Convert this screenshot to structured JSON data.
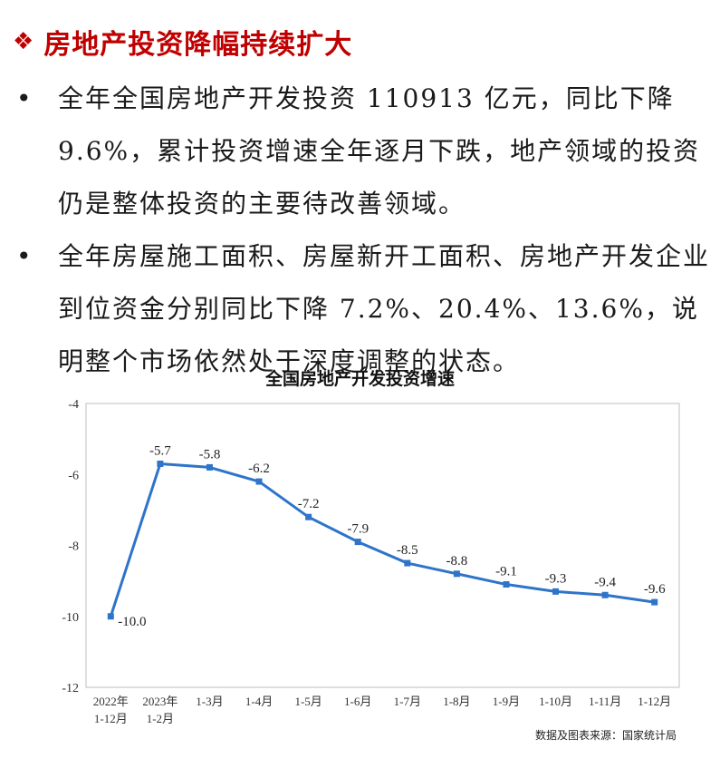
{
  "header": {
    "marker": "❖",
    "title": "房地产投资降幅持续扩大"
  },
  "bullets": [
    {
      "marker": "•",
      "text": "全年全国房地产开发投资 110913 亿元，同比下降 9.6%，累计投资增速全年逐月下跌，地产领域的投资仍是整体投资的主要待改善领域。"
    },
    {
      "marker": "•",
      "text": "全年房屋施工面积、房屋新开工面积、房地产开发企业到位资金分别同比下降 7.2%、20.4%、13.6%，说明整个市场依然处于深度调整的状态。"
    }
  ],
  "chart_data": {
    "type": "line",
    "title": "全国房地产开发投资增速",
    "categories": [
      [
        "2022年",
        "1-12月"
      ],
      [
        "2023年",
        "1-2月"
      ],
      [
        "1-3月"
      ],
      [
        "1-4月"
      ],
      [
        "1-5月"
      ],
      [
        "1-6月"
      ],
      [
        "1-7月"
      ],
      [
        "1-8月"
      ],
      [
        "1-9月"
      ],
      [
        "1-10月"
      ],
      [
        "1-11月"
      ],
      [
        "1-12月"
      ]
    ],
    "series": [
      {
        "values": [
          -10.0,
          -5.7,
          -5.8,
          -6.2,
          -7.2,
          -7.9,
          -8.5,
          -8.8,
          -9.1,
          -9.3,
          -9.4,
          -9.6
        ],
        "labels": [
          "-10.0",
          "-5.7",
          "-5.8",
          "-6.2",
          "-7.2",
          "-7.9",
          "-8.5",
          "-8.8",
          "-9.1",
          "-9.3",
          "-9.4",
          "-9.6"
        ]
      }
    ],
    "yticks": [
      "-4",
      "-6",
      "-8",
      "-10",
      "-12"
    ],
    "ylim": [
      -12,
      -4
    ],
    "grid": false,
    "line_color": "#2e74c9",
    "source": "数据及图表来源：国家统计局"
  }
}
